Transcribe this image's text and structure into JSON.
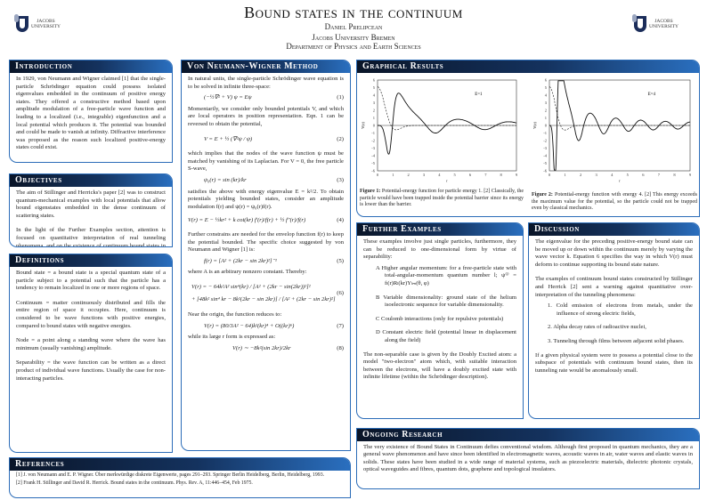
{
  "header": {
    "title": "Bound states in the continuum",
    "author": "Daniel Prelipcean",
    "institution": "Jacobs University Bremen",
    "department": "Department of Physics and Earth Sciences",
    "logo_text": [
      "JACOBS",
      "UNIVERSITY"
    ]
  },
  "intro": {
    "title": "Introduction",
    "text": "In 1929, von Neumann and Wigner claimed [1] that the single-particle Schrödinger equation could possess isolated eigenvalues embedded in the continuum of positive energy states. They offered a constructive method based upon amplitude modulation of a free-particle wave function and leading to a localized (i.e., integrable) eigenfunction and a local potential which produces it. The potential was bounded and could be made to vanish at infinity. Diffractive interference was proposed as the reason such localized positive-energy states could exist."
  },
  "objectives": {
    "title": "Objectives",
    "p1": "The aim of Stillinger and Herricks's paper [2] was to construct quantum-mechanical examples with local potentials that allow bound eigenstates embedded in the dense continuum of scattering states.",
    "p2": "In the light of the Further Examples section, attention is focused on quantitative interpretation of real tunneling phenomena, and on the existence of continuum bound states in atoms and molecules."
  },
  "definitions": {
    "title": "Definitions",
    "items": [
      "Bound state = a bound state is a special quantum state of a particle subject to a potential such that the particle has a tendency to remain localized in one or more regions of space.",
      "Continuum = matter continuously distributed and fills the entire region of space it occupies. Here, continuum is considered to be wave functions with positive energies, compared to bound states with negative energies.",
      "Node = a point along a standing wave where the wave has minimum (usually vanishing) amplitude.",
      "Separability = the wave function can be written as a direct product of individual wave functions. Usually the case for non-interacting particles."
    ]
  },
  "references": {
    "title": "References",
    "items": [
      "[1] J. von Neumann and E. P. Wigner. Über merkwürdige diskrete Eigenwerte, pages 291–293. Springer Berlin Heidelberg, Berlin, Heidelberg, 1993.",
      "[2] Frank H. Stillinger and David R. Herrick. Bound states in the continuum. Phys. Rev. A, 11:446–454, Feb 1975."
    ]
  },
  "method": {
    "title": "Von Neumann-Wigner Method",
    "t1": "In natural units, the single-particle Schrödinger wave equation is to be solved in infinite three-space:",
    "eq1": "(−½∇² + V) ψ = Eψ",
    "n1": "(1)",
    "t2": "Momentarily, we consider only bounded potentials V, and which are local operators in position representation. Eqn. 1 can be reversed to obtain the potential,",
    "eq2": "V = E + ½ (∇²ψ / ψ)",
    "n2": "(2)",
    "t3": "which implies that the nodes of the wave function ψ must be matched by vanishing of its Laplacian. For V = 0, the free particle S-wave,",
    "eq3": "ψ₀(r) = sin (kr)/kr",
    "n3": "(3)",
    "t4": "satisfies the above with energy eigenvalue E = k²/2. To obtain potentials yielding bounded states, consider an amplitude modulation f(r) and ψ(r) = ψ₀(r)f(r).",
    "eq4": "V(r) = E − ½kr² + k cot(kr) f′(r)/f(r) + ½ f″(r)/f(r)",
    "n4": "(4)",
    "t5": "Further constrains are needed for the envelop function f(r) to keep the potential bounded. The specific choice suggested by von Neumann and Wigner [1] is:",
    "eq5": "f(r) = [A² + (2kr − sin 2kr)²]⁻¹",
    "n5": "(5)",
    "t6": "where A is an arbitrary nonzero constant. Thereby:",
    "eq6a": "V(r) = − 64k²A² sin⁴(kr) / [A² + (2kr − sin(2kr))²]²",
    "eq6b": "+ [48k² sin⁴ kr − 8k²(2kr − sin 2kr)] / [A² + (2kr − sin 2kr)²]",
    "n6": "(6)",
    "t7": "Near the origin, the function reduces to:",
    "eq7": "V(r) = (80/3A² − 64)k²(kr)⁴ + O((kr)⁶)",
    "n7": "(7)",
    "t8": "while its large r form is expressed as:",
    "eq8": "V(r) ∼ −8k²(sin 2kr)/2kr",
    "n8": "(8)"
  },
  "graphs": {
    "title": "Graphical Results",
    "fig1": {
      "label": "E=1",
      "ylabel": "V(r)",
      "xlabel": "r",
      "cap_b": "Figure 1:",
      "cap": " Potential-energy function for particle energy 1. [2] Classically, the particle would have been trapped inside the potential barrier since its energy is lower than the barrier."
    },
    "fig2": {
      "label": "E=4",
      "ylabel": "V(r)",
      "xlabel": "r",
      "cap_b": "Figure 2:",
      "cap": " Potential-energy function with energy 4. [2] This energy exceeds the maximum value for the potential, so the particle could not be trapped even by classical mechanics."
    },
    "yticks": [
      "6",
      "5",
      "4",
      "3",
      "2",
      "1",
      "0",
      "-1",
      "-2",
      "-3",
      "-4",
      "-5",
      "-6"
    ],
    "xticks": [
      "0",
      "1",
      "2",
      "3",
      "4",
      "5",
      "6",
      "7",
      "8",
      "9"
    ]
  },
  "further": {
    "title": "Further Examples",
    "intro": "These examples involve just single particles, furthermore, they can be reduced to one-dimensional form by virtue of separability:",
    "items": [
      "A  Higher angular momentum: for a free-particle state with total-angular-momentum quantum number l; ψ⁽ˡ⁾ = fₗ(r)Rₗ(kr)Yₗₘ(θ, φ)",
      "B  Variable dimensionality: ground state of the helium isoelectronic sequence for variable dimensionality.",
      "C  Coulomb interactions (only for repulsive potentials)",
      "D  Constant electric field (potential linear in displacement along the field)"
    ],
    "outro": "The non-separable case is given by the Doubly Excited atom: a model \"two-electron\" atom which, with suitable interaction between the electrons, will have a doubly excited state with infinite lifetime (within the Schrödinger description)."
  },
  "discussion": {
    "title": "Discussion",
    "p1": "The eigenvalue for the preceding positive-energy bound state can be moved up or down within the continuum merely by varying the wave vector k. Equation 6 specifies the way in which V(r) must deform to continue supporting its bound state nature.",
    "p2": "The examples of continuum bound states constructed by Stillinger and Herrick [2] sent a warning against quantitative over-interpretation of the tunneling phenomena:",
    "items": [
      "1. Cold emission of electrons from metals, under the influence of strong electric fields,",
      "2. Alpha decay rates of radioactive nuclei,",
      "3. Tunneling through films between adjacent solid phases."
    ],
    "p3": "If a given physical system were to possess a potential close to the subspace of potentials with continuum bound states, then its tunneling rate would be anomalously small."
  },
  "ongoing": {
    "title": "Ongoing Research",
    "text": "The very existence of Bound States in Continuum defies conventional wisdom. Although first proposed in quantum mechanics, they are a general wave phenomenon and have since been identified in electromagnetic waves, acoustic waves in air, water waves and elastic waves in solids. These states have been studied in a wide range of material systems, such as piezoelectric materials, dielectric photonic crystals, optical waveguides and fibres, quantum dots, graphene and topological insulators."
  },
  "colors": {
    "header_dark": "#0a1528",
    "header_light": "#2a6fbf",
    "border": "#2b6cb8"
  }
}
